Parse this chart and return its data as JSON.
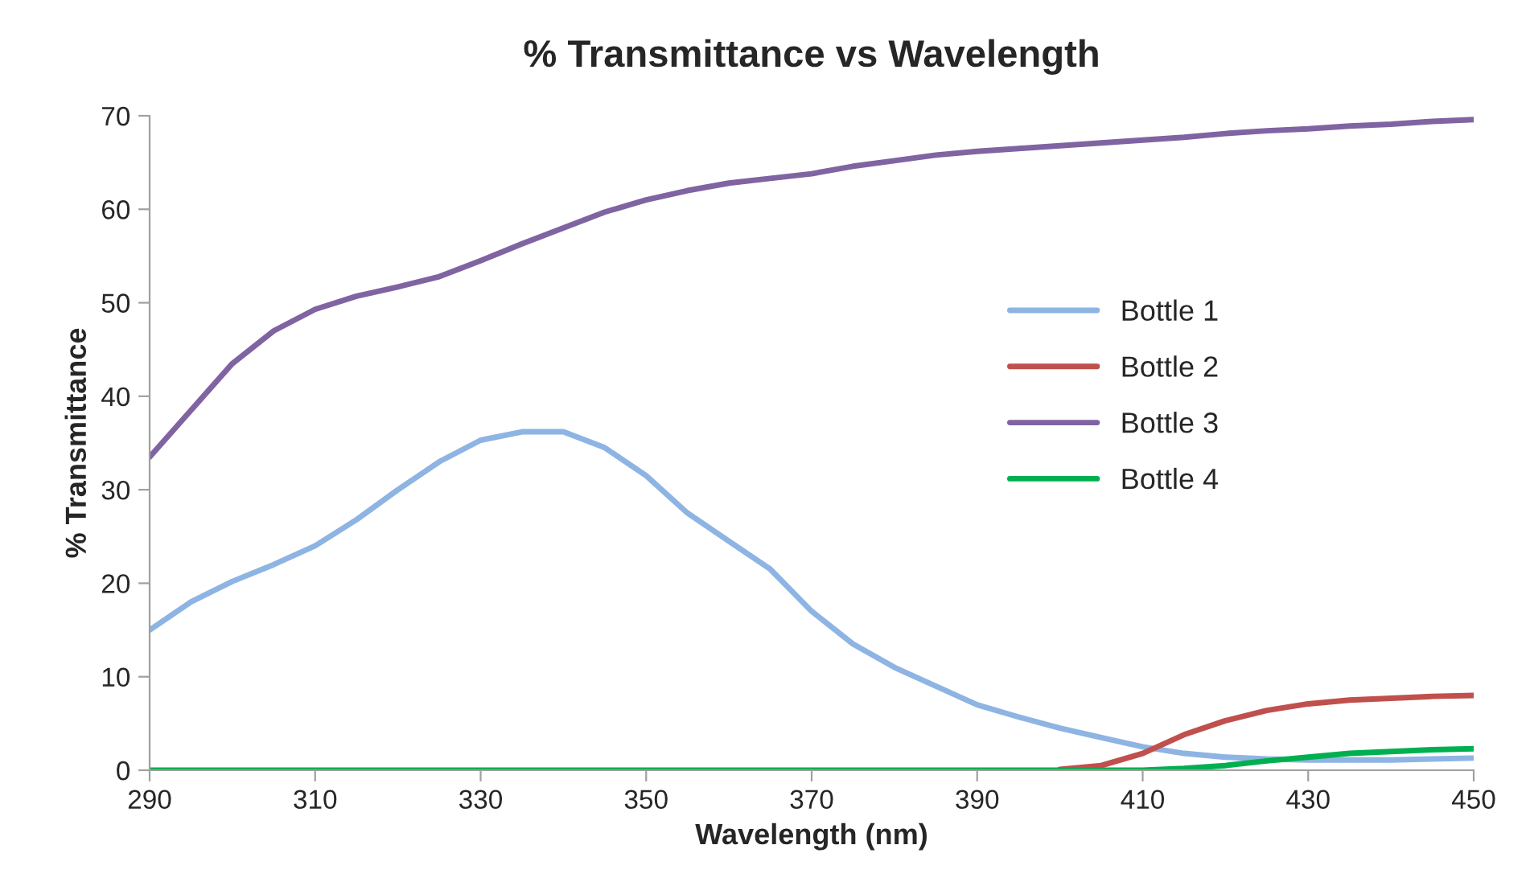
{
  "chart_data": {
    "type": "line",
    "title": "% Transmittance vs Wavelength",
    "xlabel": "Wavelength (nm)",
    "ylabel": "% Transmittance",
    "x": [
      290,
      295,
      300,
      305,
      310,
      315,
      320,
      325,
      330,
      335,
      340,
      345,
      350,
      355,
      360,
      365,
      370,
      375,
      380,
      385,
      390,
      395,
      400,
      405,
      410,
      415,
      420,
      425,
      430,
      435,
      440,
      445,
      450
    ],
    "series": [
      {
        "name": "Bottle 1",
        "color": "#8eb4e3",
        "values": [
          15,
          18,
          20.2,
          22,
          24,
          26.8,
          30,
          33,
          35.3,
          36.2,
          36.2,
          34.5,
          31.5,
          27.5,
          24.5,
          21.5,
          17,
          13.5,
          11,
          9,
          7,
          5.7,
          4.5,
          3.5,
          2.5,
          1.8,
          1.4,
          1.2,
          1.1,
          1.1,
          1.1,
          1.2,
          1.3
        ]
      },
      {
        "name": "Bottle 2",
        "color": "#c0504d",
        "values": [
          null,
          null,
          null,
          null,
          null,
          null,
          null,
          null,
          null,
          null,
          null,
          null,
          null,
          null,
          null,
          null,
          null,
          null,
          null,
          null,
          null,
          null,
          0.1,
          0.5,
          1.8,
          3.8,
          5.3,
          6.4,
          7.1,
          7.5,
          7.7,
          7.9,
          8.0
        ]
      },
      {
        "name": "Bottle 3",
        "color": "#8064a2",
        "values": [
          33.5,
          38.5,
          43.5,
          47,
          49.3,
          50.7,
          51.7,
          52.8,
          54.5,
          56.3,
          58,
          59.7,
          61,
          62,
          62.8,
          63.3,
          63.8,
          64.6,
          65.2,
          65.8,
          66.2,
          66.5,
          66.8,
          67.1,
          67.4,
          67.7,
          68.1,
          68.4,
          68.6,
          68.9,
          69.1,
          69.4,
          69.6
        ]
      },
      {
        "name": "Bottle 4",
        "color": "#00b050",
        "values": [
          0,
          0,
          0,
          0,
          0,
          0,
          0,
          0,
          0,
          0,
          0,
          0,
          0,
          0,
          0,
          0,
          0,
          0,
          0,
          0,
          0,
          0,
          0,
          0,
          0,
          0.2,
          0.5,
          1.0,
          1.4,
          1.8,
          2.0,
          2.2,
          2.3
        ]
      }
    ],
    "xlim": [
      290,
      450
    ],
    "xticks": [
      290,
      310,
      330,
      350,
      370,
      390,
      410,
      430,
      450
    ],
    "ylim": [
      0,
      70
    ],
    "yticks": [
      0,
      10,
      20,
      30,
      40,
      50,
      60,
      70
    ],
    "grid": false,
    "legend": "right",
    "marker": "none",
    "line_style": "solid"
  }
}
